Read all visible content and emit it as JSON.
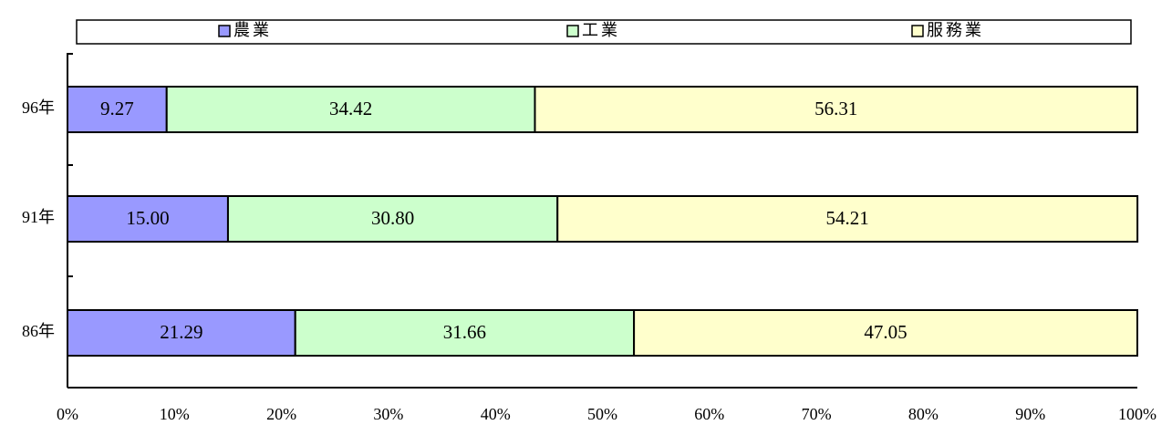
{
  "chart_data": {
    "type": "stacked_barh",
    "categories": [
      "96年",
      "91年",
      "86年"
    ],
    "series": [
      {
        "name": "農業",
        "color": "#9999ff",
        "values": [
          9.27,
          15,
          21.29
        ],
        "value_labels": [
          "9.27",
          "15.00",
          "21.29"
        ]
      },
      {
        "name": "工業",
        "color": "#ccffcc",
        "values": [
          34.42,
          30.8,
          31.66
        ],
        "value_labels": [
          "34.42",
          "30.80",
          "31.66"
        ]
      },
      {
        "name": "服務業",
        "color": "#ffffcc",
        "values": [
          56.31,
          54.21,
          47.05
        ],
        "value_labels": [
          "56.31",
          "54.21",
          "47.05"
        ]
      }
    ],
    "xlim": [
      0,
      100
    ],
    "xticks": [
      {
        "value": 0,
        "label": "0%"
      },
      {
        "value": 10,
        "label": "10%"
      },
      {
        "value": 20,
        "label": "20%"
      },
      {
        "value": 30,
        "label": "30%"
      },
      {
        "value": 40,
        "label": "40%"
      },
      {
        "value": 50,
        "label": "50%"
      },
      {
        "value": 60,
        "label": "60%"
      },
      {
        "value": 70,
        "label": "70%"
      },
      {
        "value": 80,
        "label": "80%"
      },
      {
        "value": 90,
        "label": "90%"
      },
      {
        "value": 100,
        "label": "100%"
      }
    ],
    "grid": false,
    "legend": "top"
  }
}
